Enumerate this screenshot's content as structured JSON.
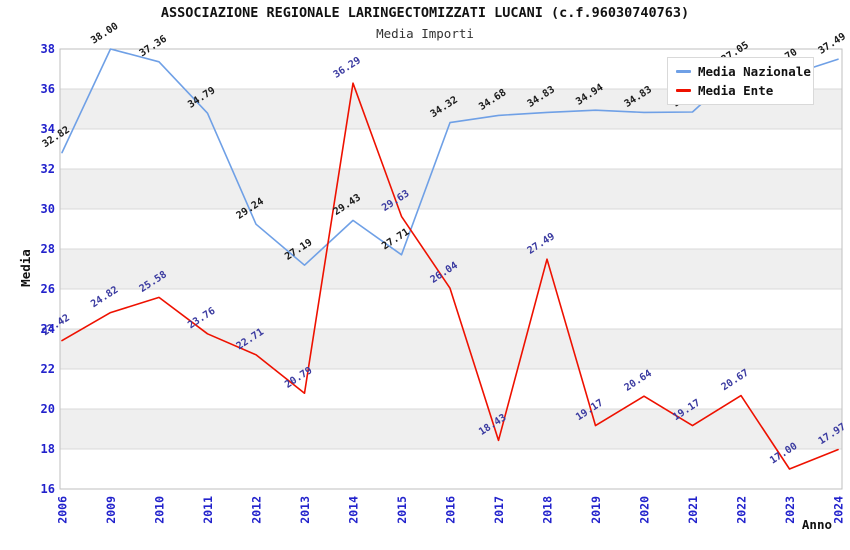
{
  "title": "ASSOCIAZIONE REGIONALE LARINGECTOMIZZATI LUCANI (c.f.96030740763)",
  "subtitle": "Media Importi",
  "axes": {
    "x_title": "Anno",
    "y_title": "Media",
    "y_ticks": [
      16,
      18,
      20,
      22,
      24,
      26,
      28,
      30,
      32,
      34,
      36,
      38
    ],
    "tick_label_color": "#2222cc",
    "axis_title_color": "#111111"
  },
  "legend": {
    "items": [
      {
        "label": "Media Nazionale",
        "color": "#6fa0e6"
      },
      {
        "label": "Media Ente",
        "color": "#ee1100"
      }
    ]
  },
  "colors": {
    "background": "#ffffff",
    "band_gray": "#efefef",
    "gridline": "#d9d9d9",
    "plot_border": "#bfbfbf"
  },
  "chart_data": {
    "type": "line",
    "title": "ASSOCIAZIONE REGIONALE LARINGECTOMIZZATI LUCANI (c.f.96030740763)",
    "subtitle": "Media Importi",
    "xlabel": "Anno",
    "ylabel": "Media",
    "ylim": [
      16,
      38
    ],
    "grid": "horizontal-bands-alternating",
    "legend_position": "top-right-inside",
    "categories": [
      "2006",
      "2009",
      "2010",
      "2011",
      "2012",
      "2013",
      "2014",
      "2015",
      "2016",
      "2017",
      "2018",
      "2019",
      "2020",
      "2021",
      "2022",
      "2023",
      "2024"
    ],
    "series": [
      {
        "name": "Media Nazionale",
        "color": "#6fa0e6",
        "label_color": "#1a1a1a",
        "values": [
          32.82,
          38.0,
          37.36,
          34.79,
          29.24,
          27.19,
          29.43,
          27.71,
          34.32,
          34.68,
          34.83,
          34.94,
          34.83,
          34.85,
          37.05,
          36.7,
          37.49
        ],
        "labels": [
          "32.82",
          "38.00",
          "37.36",
          "34.79",
          "29.24",
          "27.19",
          "29.43",
          "27.71",
          "34.32",
          "34.68",
          "34.83",
          "34.94",
          "34.83",
          "34.85",
          "37.05",
          "36.70",
          "37.49"
        ]
      },
      {
        "name": "Media Ente",
        "color": "#ee1100",
        "label_color": "#3a3aa0",
        "values": [
          23.42,
          24.82,
          25.58,
          23.76,
          22.71,
          20.79,
          36.29,
          29.63,
          26.04,
          18.43,
          27.49,
          19.17,
          20.64,
          19.17,
          20.67,
          17.0,
          17.97
        ],
        "labels": [
          "23.42",
          "24.82",
          "25.58",
          "23.76",
          "22.71",
          "20.79",
          "36.29",
          "29.63",
          "26.04",
          "18.43",
          "27.49",
          "19.17",
          "20.64",
          "19.17",
          "20.67",
          "17.00",
          "17.97"
        ]
      }
    ]
  }
}
